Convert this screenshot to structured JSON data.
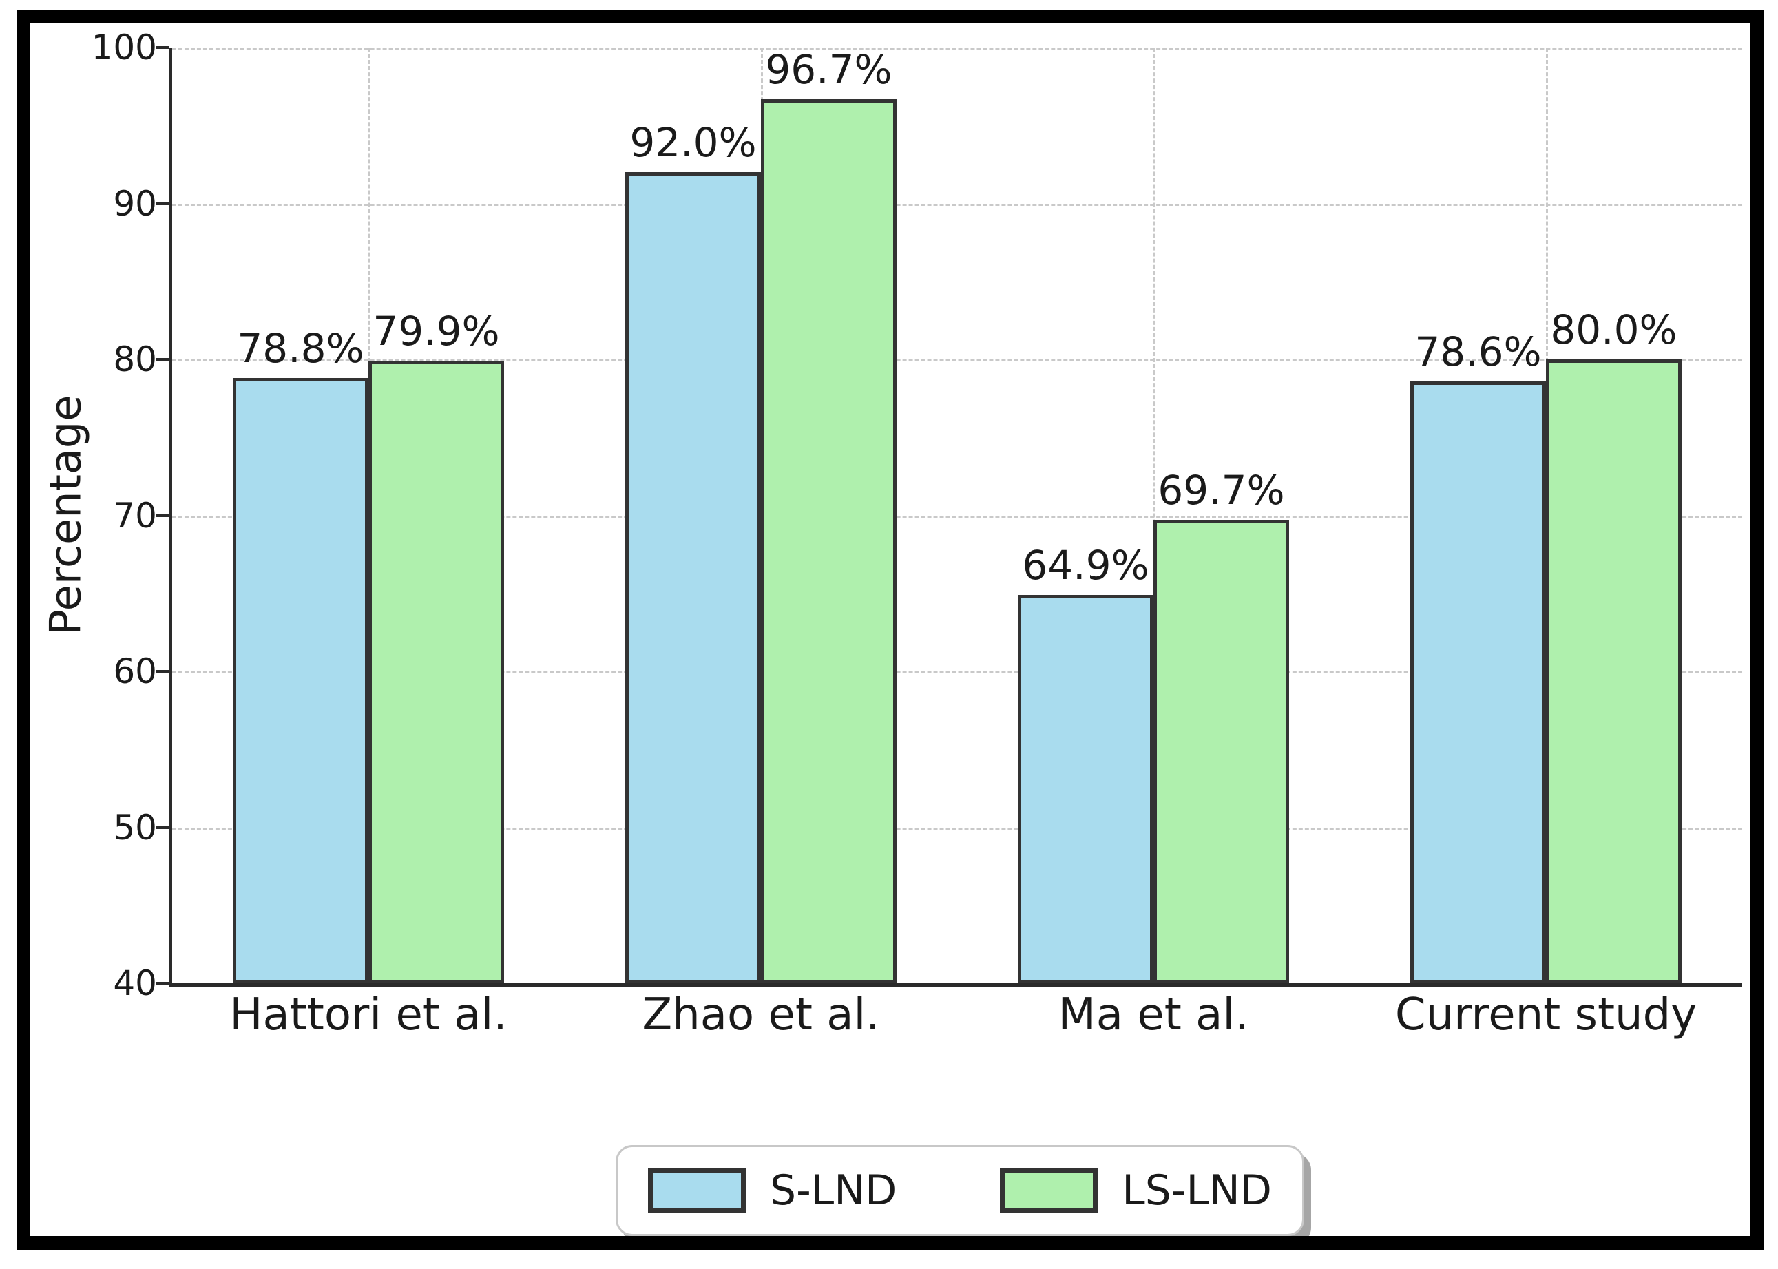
{
  "chart_data": {
    "type": "bar",
    "title": "",
    "xlabel": "",
    "ylabel": "Percentage",
    "categories": [
      "Hattori et al.",
      "Zhao et al.",
      "Ma et al.",
      "Current study"
    ],
    "series": [
      {
        "name": "S-LND",
        "color": "#a9dcee",
        "edge_color": "#333333",
        "values": [
          78.8,
          92.0,
          64.9,
          78.6
        ],
        "value_labels": [
          "78.8%",
          "92.0%",
          "64.9%",
          "78.6%"
        ]
      },
      {
        "name": "LS-LND",
        "color": "#aff0ad",
        "edge_color": "#333333",
        "values": [
          79.9,
          96.7,
          69.7,
          80.0
        ],
        "value_labels": [
          "79.9%",
          "96.7%",
          "69.7%",
          "80.0%"
        ]
      }
    ],
    "ylim": [
      40,
      100
    ],
    "yticks": [
      40,
      50,
      60,
      70,
      80,
      90,
      100
    ],
    "grid": true,
    "grid_color": "#c9c9c9",
    "legend": {
      "position": "bottom-center",
      "entries": [
        "S-LND",
        "LS-LND"
      ]
    },
    "frame_color": "#000000"
  }
}
